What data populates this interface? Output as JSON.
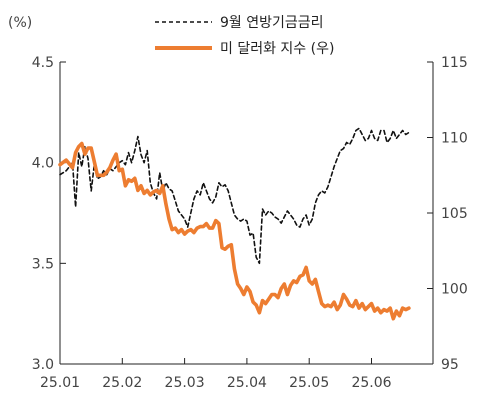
{
  "chart_data": {
    "type": "line",
    "unit_left": "(%)",
    "x_ticks": [
      "25.01",
      "25.02",
      "25.03",
      "25.04",
      "25.05",
      "25.06"
    ],
    "y_left": {
      "ticks": [
        "3.0",
        "3.5",
        "4.0",
        "4.5"
      ],
      "ylim": [
        3.0,
        4.5
      ]
    },
    "y_right": {
      "ticks": [
        "95",
        "100",
        "105",
        "110",
        "115"
      ],
      "ylim": [
        95,
        115
      ]
    },
    "grid": false,
    "legend_position": "top-center",
    "series": [
      {
        "name": "9월 연방기금금리",
        "axis": "left",
        "style": "dashed",
        "color": "#111111",
        "x": [
          0.0,
          0.1,
          0.2,
          0.25,
          0.3,
          0.35,
          0.4,
          0.45,
          0.5,
          0.55,
          0.6,
          0.65,
          0.7,
          0.75,
          0.8,
          0.85,
          0.9,
          0.95,
          1.0,
          1.05,
          1.1,
          1.15,
          1.2,
          1.25,
          1.3,
          1.35,
          1.4,
          1.45,
          1.5,
          1.55,
          1.6,
          1.65,
          1.7,
          1.75,
          1.8,
          1.85,
          1.9,
          1.95,
          2.0,
          2.05,
          2.1,
          2.15,
          2.2,
          2.25,
          2.3,
          2.35,
          2.4,
          2.45,
          2.5,
          2.55,
          2.6,
          2.65,
          2.7,
          2.75,
          2.8,
          2.85,
          2.9,
          2.95,
          3.0,
          3.05,
          3.1,
          3.15,
          3.2,
          3.25,
          3.3,
          3.35,
          3.4,
          3.45,
          3.5,
          3.55,
          3.6,
          3.65,
          3.7,
          3.75,
          3.8,
          3.85,
          3.9,
          3.95,
          4.0,
          4.05,
          4.1,
          4.15,
          4.2,
          4.25,
          4.3,
          4.35,
          4.4,
          4.45,
          4.5,
          4.55,
          4.6,
          4.65,
          4.7,
          4.75,
          4.8,
          4.85,
          4.9,
          4.95,
          5.0,
          5.05,
          5.1,
          5.15,
          5.2,
          5.25,
          5.3,
          5.35,
          5.4,
          5.45,
          5.5,
          5.55,
          5.6
        ],
        "y": [
          3.94,
          3.96,
          4.0,
          3.78,
          4.05,
          3.98,
          4.08,
          4.02,
          3.86,
          3.99,
          3.92,
          3.93,
          3.96,
          3.94,
          3.97,
          3.96,
          3.98,
          4.0,
          4.01,
          3.99,
          4.05,
          4.0,
          4.06,
          4.13,
          4.04,
          4.0,
          4.06,
          3.9,
          3.85,
          3.82,
          3.95,
          3.86,
          3.9,
          3.87,
          3.86,
          3.81,
          3.76,
          3.74,
          3.72,
          3.68,
          3.75,
          3.82,
          3.86,
          3.84,
          3.9,
          3.86,
          3.82,
          3.8,
          3.83,
          3.9,
          3.88,
          3.89,
          3.86,
          3.8,
          3.74,
          3.72,
          3.71,
          3.72,
          3.71,
          3.64,
          3.65,
          3.53,
          3.5,
          3.77,
          3.74,
          3.76,
          3.75,
          3.73,
          3.72,
          3.7,
          3.73,
          3.76,
          3.74,
          3.72,
          3.69,
          3.68,
          3.72,
          3.74,
          3.69,
          3.72,
          3.8,
          3.84,
          3.86,
          3.85,
          3.88,
          3.93,
          3.98,
          4.02,
          4.06,
          4.07,
          4.1,
          4.09,
          4.12,
          4.16,
          4.17,
          4.14,
          4.11,
          4.12,
          4.16,
          4.12,
          4.11,
          4.16,
          4.16,
          4.1,
          4.12,
          4.16,
          4.12,
          4.14,
          4.16,
          4.14,
          4.15
        ]
      },
      {
        "name": "미 달러화 지수 (우)",
        "axis": "right",
        "style": "solid",
        "color": "#ed7d31",
        "x": [
          0.0,
          0.1,
          0.2,
          0.25,
          0.3,
          0.35,
          0.4,
          0.45,
          0.5,
          0.55,
          0.6,
          0.65,
          0.7,
          0.75,
          0.8,
          0.85,
          0.9,
          0.95,
          1.0,
          1.05,
          1.1,
          1.15,
          1.2,
          1.25,
          1.3,
          1.35,
          1.4,
          1.45,
          1.5,
          1.55,
          1.6,
          1.65,
          1.7,
          1.75,
          1.8,
          1.85,
          1.9,
          1.95,
          2.0,
          2.05,
          2.1,
          2.15,
          2.2,
          2.25,
          2.3,
          2.35,
          2.4,
          2.45,
          2.5,
          2.55,
          2.6,
          2.65,
          2.7,
          2.75,
          2.8,
          2.85,
          2.9,
          2.95,
          3.0,
          3.05,
          3.1,
          3.15,
          3.2,
          3.25,
          3.3,
          3.35,
          3.4,
          3.45,
          3.5,
          3.55,
          3.6,
          3.65,
          3.7,
          3.75,
          3.8,
          3.85,
          3.9,
          3.95,
          4.0,
          4.05,
          4.1,
          4.15,
          4.2,
          4.25,
          4.3,
          4.35,
          4.4,
          4.45,
          4.5,
          4.55,
          4.6,
          4.65,
          4.7,
          4.75,
          4.8,
          4.85,
          4.9,
          4.95,
          5.0,
          5.05,
          5.1,
          5.15,
          5.2,
          5.25,
          5.3,
          5.35,
          5.4,
          5.45,
          5.5,
          5.55,
          5.6
        ],
        "y": [
          108.2,
          108.5,
          108.0,
          109.0,
          109.4,
          109.6,
          108.9,
          109.3,
          109.3,
          108.4,
          107.5,
          107.5,
          107.5,
          107.7,
          108.0,
          108.5,
          108.9,
          107.8,
          107.9,
          106.8,
          107.2,
          107.1,
          107.3,
          106.5,
          106.8,
          106.3,
          106.5,
          106.2,
          106.4,
          106.5,
          106.3,
          106.8,
          105.6,
          104.6,
          103.9,
          104.0,
          103.7,
          103.9,
          103.6,
          103.8,
          103.9,
          103.7,
          104.0,
          104.1,
          104.1,
          104.3,
          104.0,
          104.0,
          104.5,
          104.3,
          102.7,
          102.6,
          102.8,
          102.9,
          101.3,
          100.3,
          100.0,
          99.6,
          100.1,
          99.8,
          99.1,
          98.9,
          98.4,
          99.2,
          99.0,
          99.3,
          99.6,
          99.6,
          99.4,
          100.0,
          100.3,
          99.6,
          100.2,
          100.5,
          100.4,
          100.8,
          100.9,
          101.4,
          100.5,
          100.3,
          100.6,
          99.8,
          99.0,
          98.8,
          98.9,
          98.8,
          99.1,
          98.6,
          98.9,
          99.6,
          99.3,
          98.9,
          98.8,
          99.2,
          98.7,
          99.0,
          98.6,
          98.8,
          99.0,
          98.5,
          98.7,
          98.4,
          98.6,
          98.5,
          98.7,
          98.0,
          98.5,
          98.2,
          98.7,
          98.6,
          98.7
        ]
      }
    ]
  }
}
